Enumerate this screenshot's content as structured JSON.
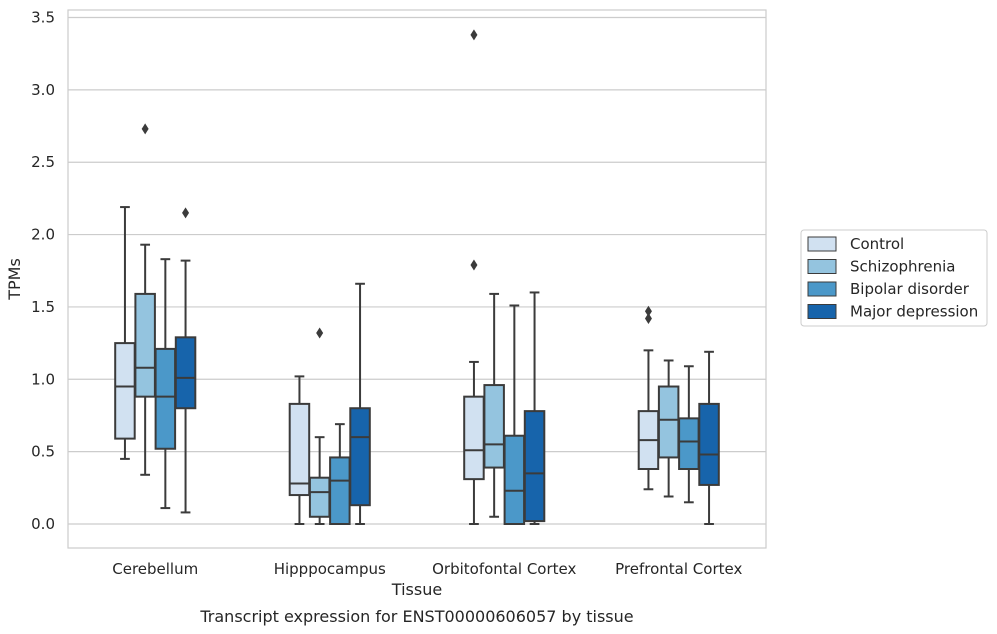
{
  "chart_data": {
    "type": "boxplot",
    "xlabel": "Tissue",
    "ylabel": "TPMs",
    "caption": "Transcript expression for ENST00000606057 by tissue",
    "categories": [
      "Cerebellum",
      "Hipppocampus",
      "Orbitofontal Cortex",
      "Prefrontal Cortex"
    ],
    "ylim": [
      -0.16,
      3.56
    ],
    "yticks": [
      0.0,
      0.5,
      1.0,
      1.5,
      2.0,
      2.5,
      3.0,
      3.5
    ],
    "ytick_labels": [
      "0.0",
      "0.5",
      "1.0",
      "1.5",
      "2.0",
      "2.5",
      "3.0",
      "3.5"
    ],
    "grid": "horizontal",
    "legend_position": "right",
    "series": [
      {
        "name": "Control",
        "color": "#d1e1f1",
        "boxes": [
          {
            "whislo": 0.45,
            "q1": 0.59,
            "med": 0.95,
            "q3": 1.25,
            "whishi": 2.19,
            "fliers": []
          },
          {
            "whislo": 0.0,
            "q1": 0.2,
            "med": 0.28,
            "q3": 0.83,
            "whishi": 1.02,
            "fliers": []
          },
          {
            "whislo": 0.0,
            "q1": 0.31,
            "med": 0.51,
            "q3": 0.88,
            "whishi": 1.12,
            "fliers": [
              1.79,
              3.38
            ]
          },
          {
            "whislo": 0.24,
            "q1": 0.38,
            "med": 0.58,
            "q3": 0.78,
            "whishi": 1.2,
            "fliers": [
              1.42,
              1.47
            ]
          }
        ]
      },
      {
        "name": "Schizophrenia",
        "color": "#94c4df",
        "boxes": [
          {
            "whislo": 0.34,
            "q1": 0.88,
            "med": 1.08,
            "q3": 1.59,
            "whishi": 1.93,
            "fliers": [
              2.73
            ]
          },
          {
            "whislo": 0.0,
            "q1": 0.05,
            "med": 0.22,
            "q3": 0.32,
            "whishi": 0.6,
            "fliers": [
              1.32
            ]
          },
          {
            "whislo": 0.05,
            "q1": 0.39,
            "med": 0.55,
            "q3": 0.96,
            "whishi": 1.59,
            "fliers": []
          },
          {
            "whislo": 0.19,
            "q1": 0.46,
            "med": 0.72,
            "q3": 0.95,
            "whishi": 1.13,
            "fliers": []
          }
        ]
      },
      {
        "name": "Bipolar disorder",
        "color": "#4b98c9",
        "boxes": [
          {
            "whislo": 0.11,
            "q1": 0.52,
            "med": 0.88,
            "q3": 1.21,
            "whishi": 1.83,
            "fliers": []
          },
          {
            "whislo": 0.0,
            "q1": 0.0,
            "med": 0.3,
            "q3": 0.46,
            "whishi": 0.69,
            "fliers": []
          },
          {
            "whislo": 0.0,
            "q1": 0.0,
            "med": 0.23,
            "q3": 0.61,
            "whishi": 1.51,
            "fliers": []
          },
          {
            "whislo": 0.15,
            "q1": 0.38,
            "med": 0.57,
            "q3": 0.73,
            "whishi": 1.09,
            "fliers": []
          }
        ]
      },
      {
        "name": "Major depression",
        "color": "#1764ab",
        "boxes": [
          {
            "whislo": 0.08,
            "q1": 0.8,
            "med": 1.01,
            "q3": 1.29,
            "whishi": 1.82,
            "fliers": [
              2.15
            ]
          },
          {
            "whislo": 0.0,
            "q1": 0.13,
            "med": 0.6,
            "q3": 0.8,
            "whishi": 1.66,
            "fliers": []
          },
          {
            "whislo": 0.0,
            "q1": 0.02,
            "med": 0.35,
            "q3": 0.78,
            "whishi": 1.6,
            "fliers": []
          },
          {
            "whislo": 0.0,
            "q1": 0.27,
            "med": 0.48,
            "q3": 0.83,
            "whishi": 1.19,
            "fliers": []
          }
        ]
      }
    ]
  }
}
